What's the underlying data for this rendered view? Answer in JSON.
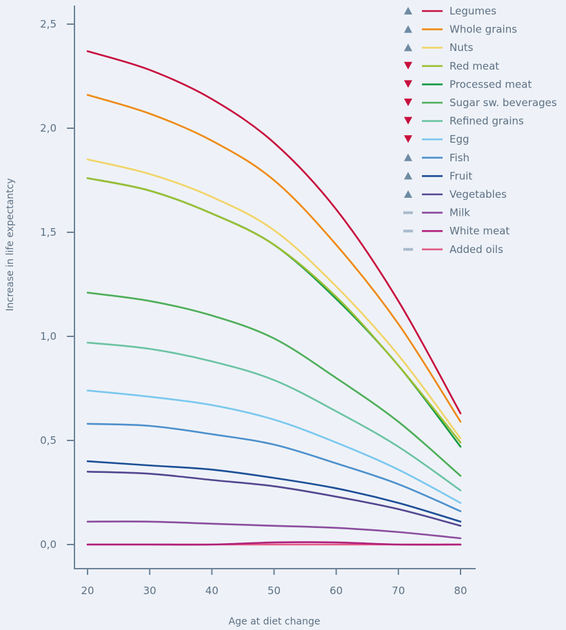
{
  "chart_data": {
    "type": "line",
    "title": "",
    "xlabel": "Age at diet change",
    "ylabel": "Increase in life expectantcy",
    "xlim": [
      20,
      80
    ],
    "ylim": [
      0,
      2.5
    ],
    "x_ticks": [
      "20",
      "30",
      "40",
      "50",
      "60",
      "70",
      "80"
    ],
    "y_ticks": [
      "0,0",
      "0,5",
      "1,0",
      "1,5",
      "2,0",
      "2,5"
    ],
    "grid": false,
    "legend_position": "top-right",
    "x": [
      20,
      30,
      40,
      50,
      60,
      70,
      80
    ],
    "series": [
      {
        "name": "Legumes",
        "marker": "up",
        "color": "#c8103e",
        "values": [
          2.37,
          2.28,
          2.14,
          1.93,
          1.61,
          1.17,
          0.63
        ]
      },
      {
        "name": "Whole grains",
        "marker": "up",
        "color": "#ef8a17",
        "values": [
          2.16,
          2.07,
          1.94,
          1.75,
          1.44,
          1.06,
          0.59
        ]
      },
      {
        "name": "Nuts",
        "marker": "up",
        "color": "#f2d46a",
        "values": [
          1.85,
          1.78,
          1.67,
          1.51,
          1.24,
          0.91,
          0.51
        ]
      },
      {
        "name": "Red meat",
        "marker": "down",
        "color": "#9cbf35",
        "values": [
          1.76,
          1.7,
          1.59,
          1.44,
          1.19,
          0.86,
          0.49
        ]
      },
      {
        "name": "Processed meat",
        "marker": "down",
        "color": "#179a48",
        "values": [
          1.76,
          1.7,
          1.59,
          1.44,
          1.18,
          0.86,
          0.47
        ]
      },
      {
        "name": "Sugar sw. beverages",
        "marker": "down",
        "color": "#4fae5a",
        "values": [
          1.21,
          1.17,
          1.1,
          0.99,
          0.8,
          0.59,
          0.33
        ]
      },
      {
        "name": "Refined grains",
        "marker": "down",
        "color": "#6cc3a3",
        "values": [
          0.97,
          0.94,
          0.88,
          0.79,
          0.64,
          0.47,
          0.26
        ]
      },
      {
        "name": "Egg",
        "marker": "down",
        "color": "#7cc8ee",
        "values": [
          0.74,
          0.71,
          0.67,
          0.6,
          0.49,
          0.36,
          0.2
        ]
      },
      {
        "name": "Fish",
        "marker": "up",
        "color": "#4d90cc",
        "values": [
          0.58,
          0.57,
          0.53,
          0.48,
          0.39,
          0.29,
          0.16
        ]
      },
      {
        "name": "Fruit",
        "marker": "up",
        "color": "#1c4f96",
        "values": [
          0.4,
          0.38,
          0.36,
          0.32,
          0.27,
          0.2,
          0.11
        ]
      },
      {
        "name": "Vegetables",
        "marker": "up",
        "color": "#544790",
        "values": [
          0.35,
          0.34,
          0.31,
          0.28,
          0.23,
          0.17,
          0.09
        ]
      },
      {
        "name": "Milk",
        "marker": "dash",
        "color": "#8b4d9e",
        "values": [
          0.11,
          0.11,
          0.1,
          0.09,
          0.08,
          0.06,
          0.03
        ]
      },
      {
        "name": "White meat",
        "marker": "dash",
        "color": "#b01f79",
        "values": [
          0.0,
          0.0,
          0.0,
          0.01,
          0.01,
          0.0,
          0.0
        ]
      },
      {
        "name": "Added oils",
        "marker": "dash",
        "color": "#e35a86",
        "values": [
          0.0,
          0.0,
          0.0,
          0.0,
          0.0,
          0.0,
          0.0
        ]
      }
    ]
  },
  "colors": {
    "axis": "#6e8398",
    "up_marker": "#6e8ba4",
    "down_marker": "#c8103e",
    "dash_marker": "#a9bccd",
    "background": "#eef2f8"
  }
}
